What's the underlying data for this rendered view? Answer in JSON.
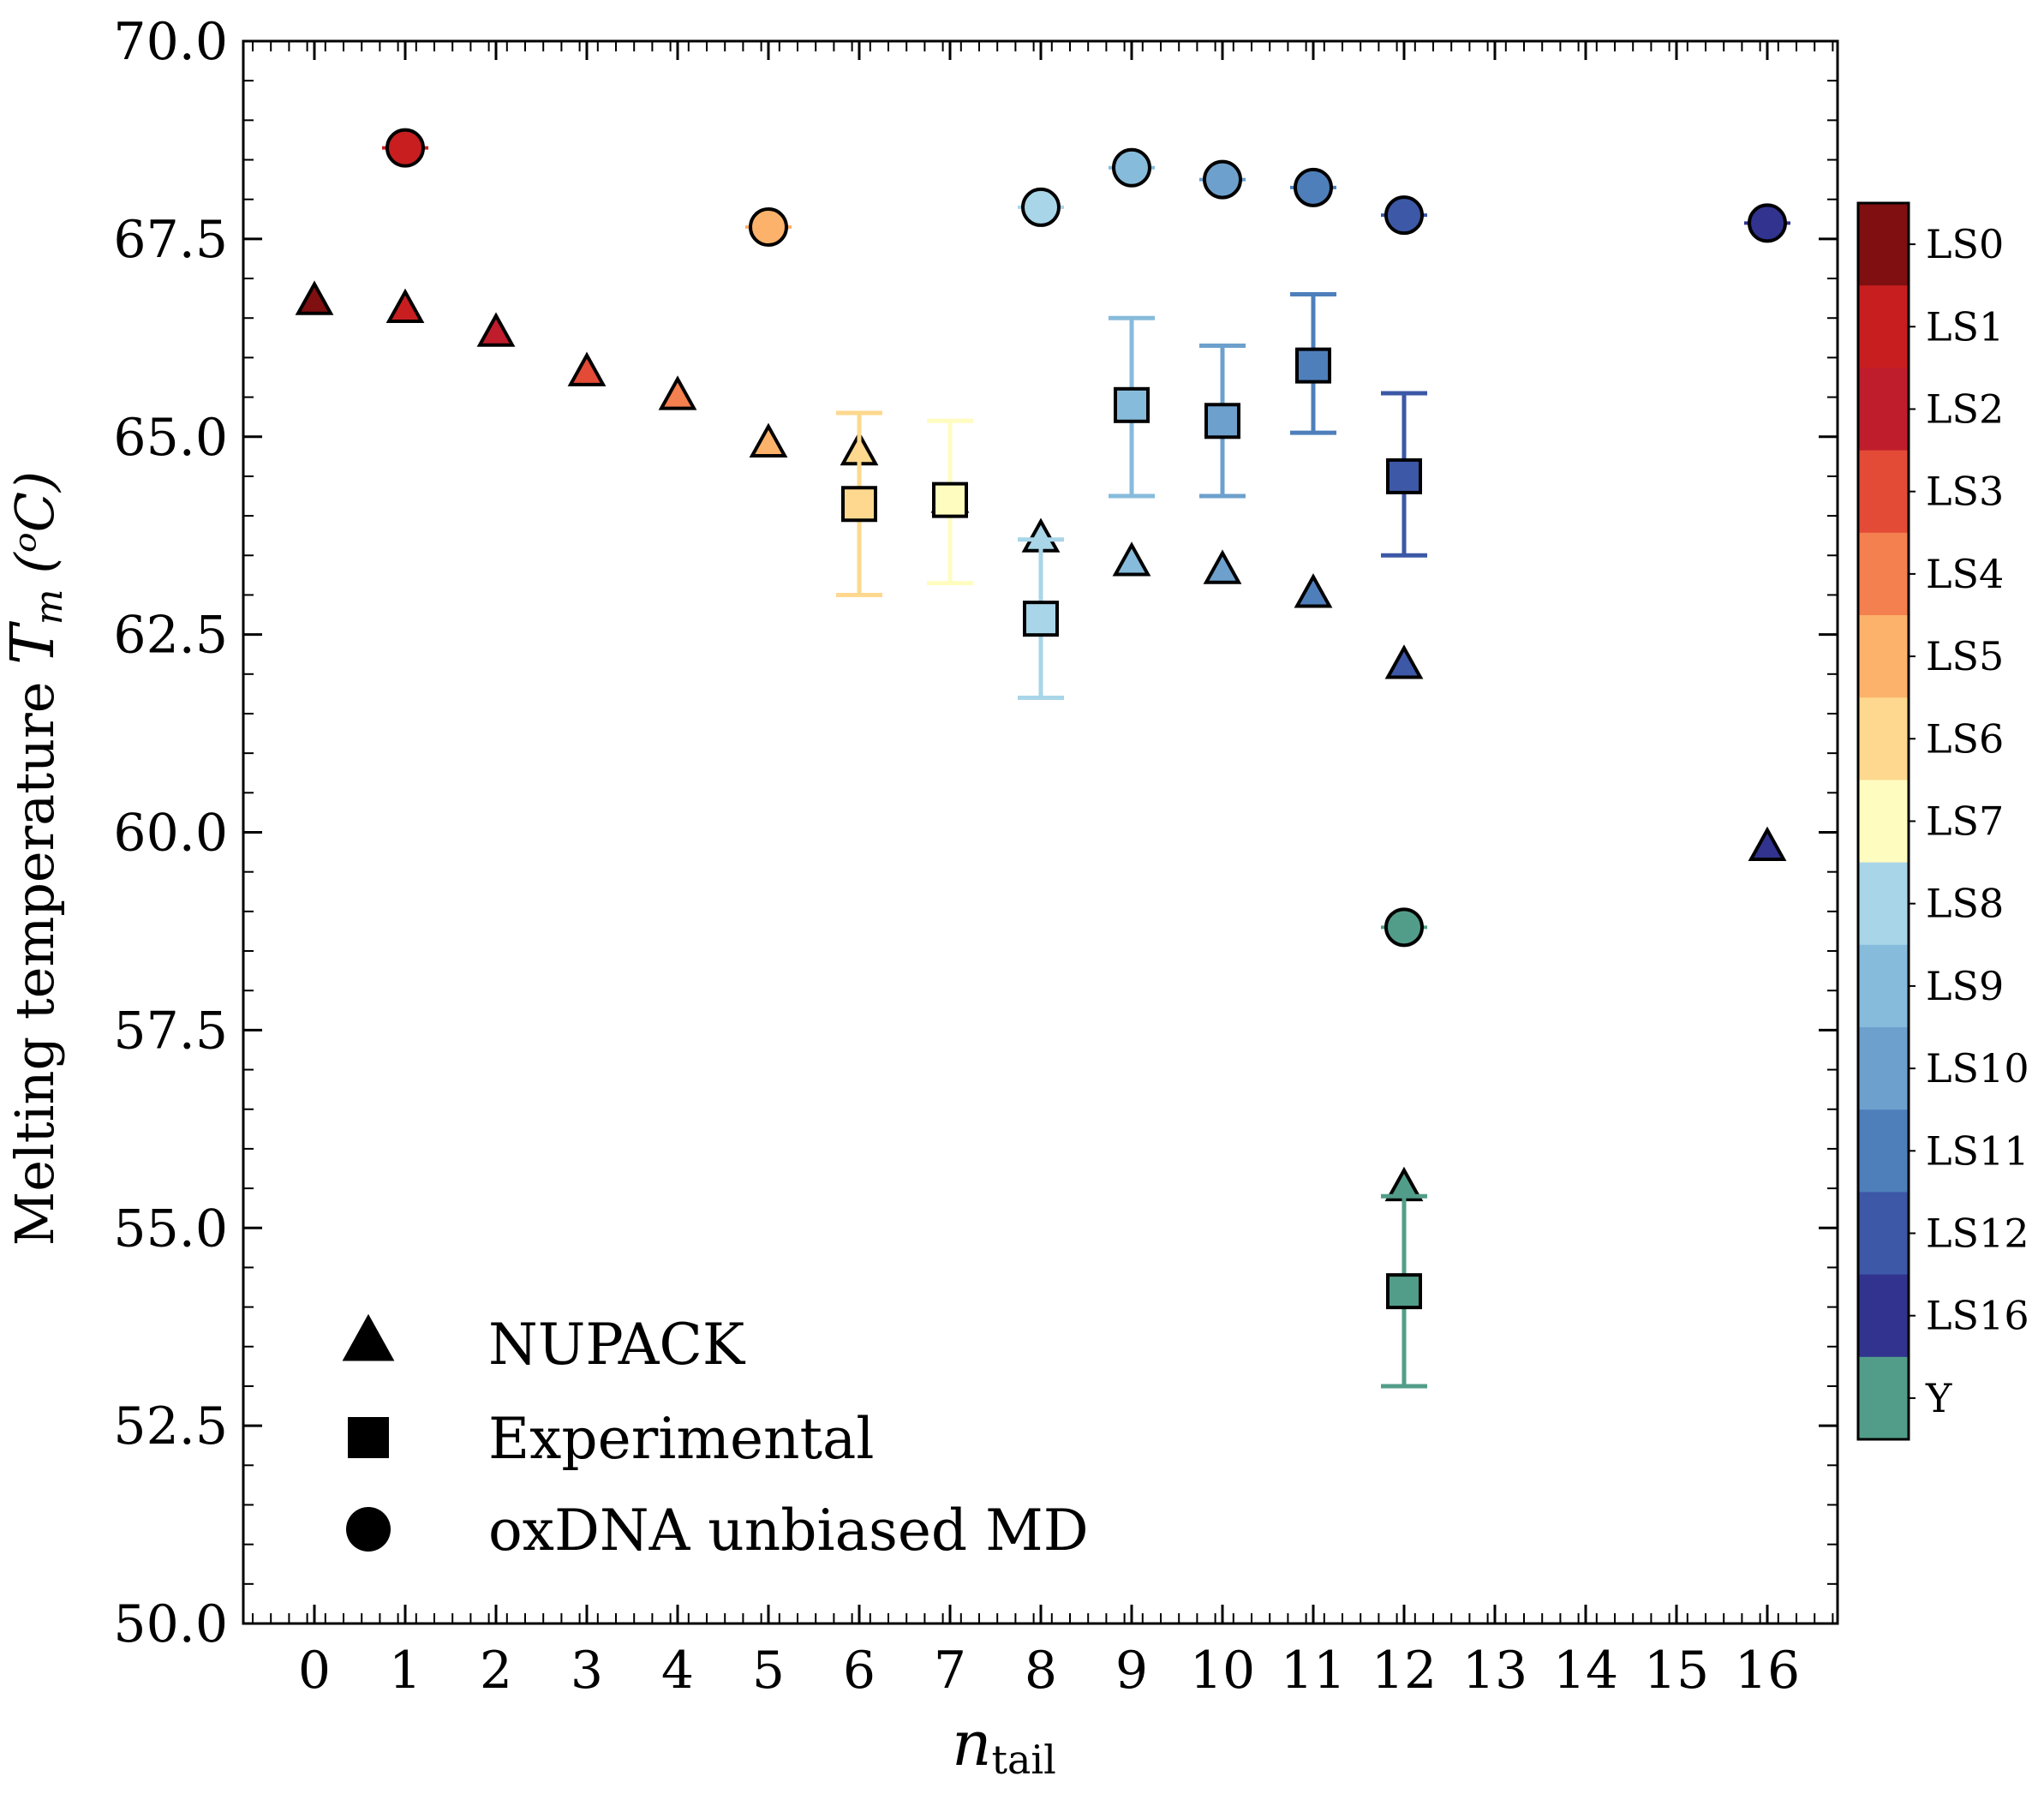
{
  "chart_data": {
    "type": "scatter",
    "xlabel": "n",
    "xlabel_sub": "tail",
    "ylabel_prefix": "Melting temperature ",
    "ylabel_symbol": "T",
    "ylabel_symbol_sub": "m",
    "ylabel_unit": "(ᵒC)",
    "ylim": [
      50.0,
      70.0
    ],
    "yticks": [
      "50.0",
      "52.5",
      "55.0",
      "57.5",
      "60.0",
      "62.5",
      "65.0",
      "67.5",
      "70.0"
    ],
    "categories": [
      "0",
      "1",
      "2",
      "3",
      "4",
      "5",
      "6",
      "7",
      "8",
      "9",
      "10",
      "11",
      "12",
      "13",
      "14",
      "15",
      "16"
    ],
    "legend_position": "lower-left",
    "legend": [
      {
        "marker": "triangle",
        "label": "NUPACK"
      },
      {
        "marker": "square",
        "label": "Experimental"
      },
      {
        "marker": "circle",
        "label": "oxDNA unbiased MD"
      }
    ],
    "colorbar": [
      {
        "label": "LS0",
        "color": "#7f0f10"
      },
      {
        "label": "LS1",
        "color": "#c81e20"
      },
      {
        "label": "LS2",
        "color": "#c01d2c"
      },
      {
        "label": "LS3",
        "color": "#e34b37"
      },
      {
        "label": "LS4",
        "color": "#f47f4f"
      },
      {
        "label": "LS5",
        "color": "#fcb26b"
      },
      {
        "label": "LS6",
        "color": "#fdd88e"
      },
      {
        "label": "LS7",
        "color": "#fffcc0"
      },
      {
        "label": "LS8",
        "color": "#a9d5e8"
      },
      {
        "label": "LS9",
        "color": "#87bbdb"
      },
      {
        "label": "LS10",
        "color": "#6da0cc"
      },
      {
        "label": "LS11",
        "color": "#4e7fbb"
      },
      {
        "label": "LS12",
        "color": "#3c58a6"
      },
      {
        "label": "LS16",
        "color": "#31338f"
      },
      {
        "label": "Y",
        "color": "#529d89"
      }
    ],
    "series": [
      {
        "method": "NUPACK",
        "marker": "triangle",
        "points": [
          {
            "x": 0,
            "y": 66.7,
            "color": "#7f0f10"
          },
          {
            "x": 1,
            "y": 66.6,
            "color": "#c81e20"
          },
          {
            "x": 2,
            "y": 66.3,
            "color": "#c01d2c"
          },
          {
            "x": 3,
            "y": 65.8,
            "color": "#e34b37"
          },
          {
            "x": 4,
            "y": 65.5,
            "color": "#f47f4f"
          },
          {
            "x": 5,
            "y": 64.9,
            "color": "#fcb26b"
          },
          {
            "x": 6,
            "y": 64.8,
            "color": "#fdd88e"
          },
          {
            "x": 7,
            "y": 64.2,
            "color": "#fffcc0"
          },
          {
            "x": 8,
            "y": 63.7,
            "color": "#a9d5e8"
          },
          {
            "x": 9,
            "y": 63.4,
            "color": "#87bbdb"
          },
          {
            "x": 10,
            "y": 63.3,
            "color": "#6da0cc"
          },
          {
            "x": 11,
            "y": 63.0,
            "color": "#4e7fbb"
          },
          {
            "x": 12,
            "y": 62.1,
            "color": "#3c58a6"
          },
          {
            "x": 16,
            "y": 59.8,
            "color": "#31338f"
          },
          {
            "x": 12,
            "y": 55.5,
            "color": "#529d89"
          }
        ]
      },
      {
        "method": "Experimental",
        "marker": "square",
        "points": [
          {
            "x": 6,
            "y": 64.15,
            "err_low": 63.0,
            "err_high": 65.3,
            "color": "#fdd88e"
          },
          {
            "x": 7,
            "y": 64.2,
            "err_low": 63.15,
            "err_high": 65.2,
            "color": "#fffcc0"
          },
          {
            "x": 8,
            "y": 62.7,
            "err_low": 61.7,
            "err_high": 63.7,
            "color": "#a9d5e8"
          },
          {
            "x": 9,
            "y": 65.4,
            "err_low": 64.25,
            "err_high": 66.5,
            "color": "#87bbdb"
          },
          {
            "x": 10,
            "y": 65.2,
            "err_low": 64.25,
            "err_high": 66.15,
            "color": "#6da0cc"
          },
          {
            "x": 11,
            "y": 65.9,
            "err_low": 65.05,
            "err_high": 66.8,
            "color": "#4e7fbb"
          },
          {
            "x": 12,
            "y": 64.5,
            "err_low": 63.5,
            "err_high": 65.55,
            "color": "#3c58a6"
          },
          {
            "x": 12,
            "y": 54.2,
            "err_low": 53.0,
            "err_high": 55.4,
            "color": "#529d89"
          }
        ]
      },
      {
        "method": "oxDNA unbiased MD",
        "marker": "circle",
        "points": [
          {
            "x": 1,
            "y": 68.65,
            "color": "#c81e20"
          },
          {
            "x": 5,
            "y": 67.65,
            "color": "#fcb26b"
          },
          {
            "x": 8,
            "y": 67.9,
            "color": "#a9d5e8"
          },
          {
            "x": 9,
            "y": 68.4,
            "color": "#87bbdb"
          },
          {
            "x": 10,
            "y": 68.25,
            "color": "#6da0cc"
          },
          {
            "x": 11,
            "y": 68.15,
            "color": "#4e7fbb"
          },
          {
            "x": 12,
            "y": 67.8,
            "color": "#3c58a6"
          },
          {
            "x": 16,
            "y": 67.7,
            "color": "#31338f"
          },
          {
            "x": 12,
            "y": 58.8,
            "color": "#529d89"
          }
        ]
      }
    ]
  }
}
